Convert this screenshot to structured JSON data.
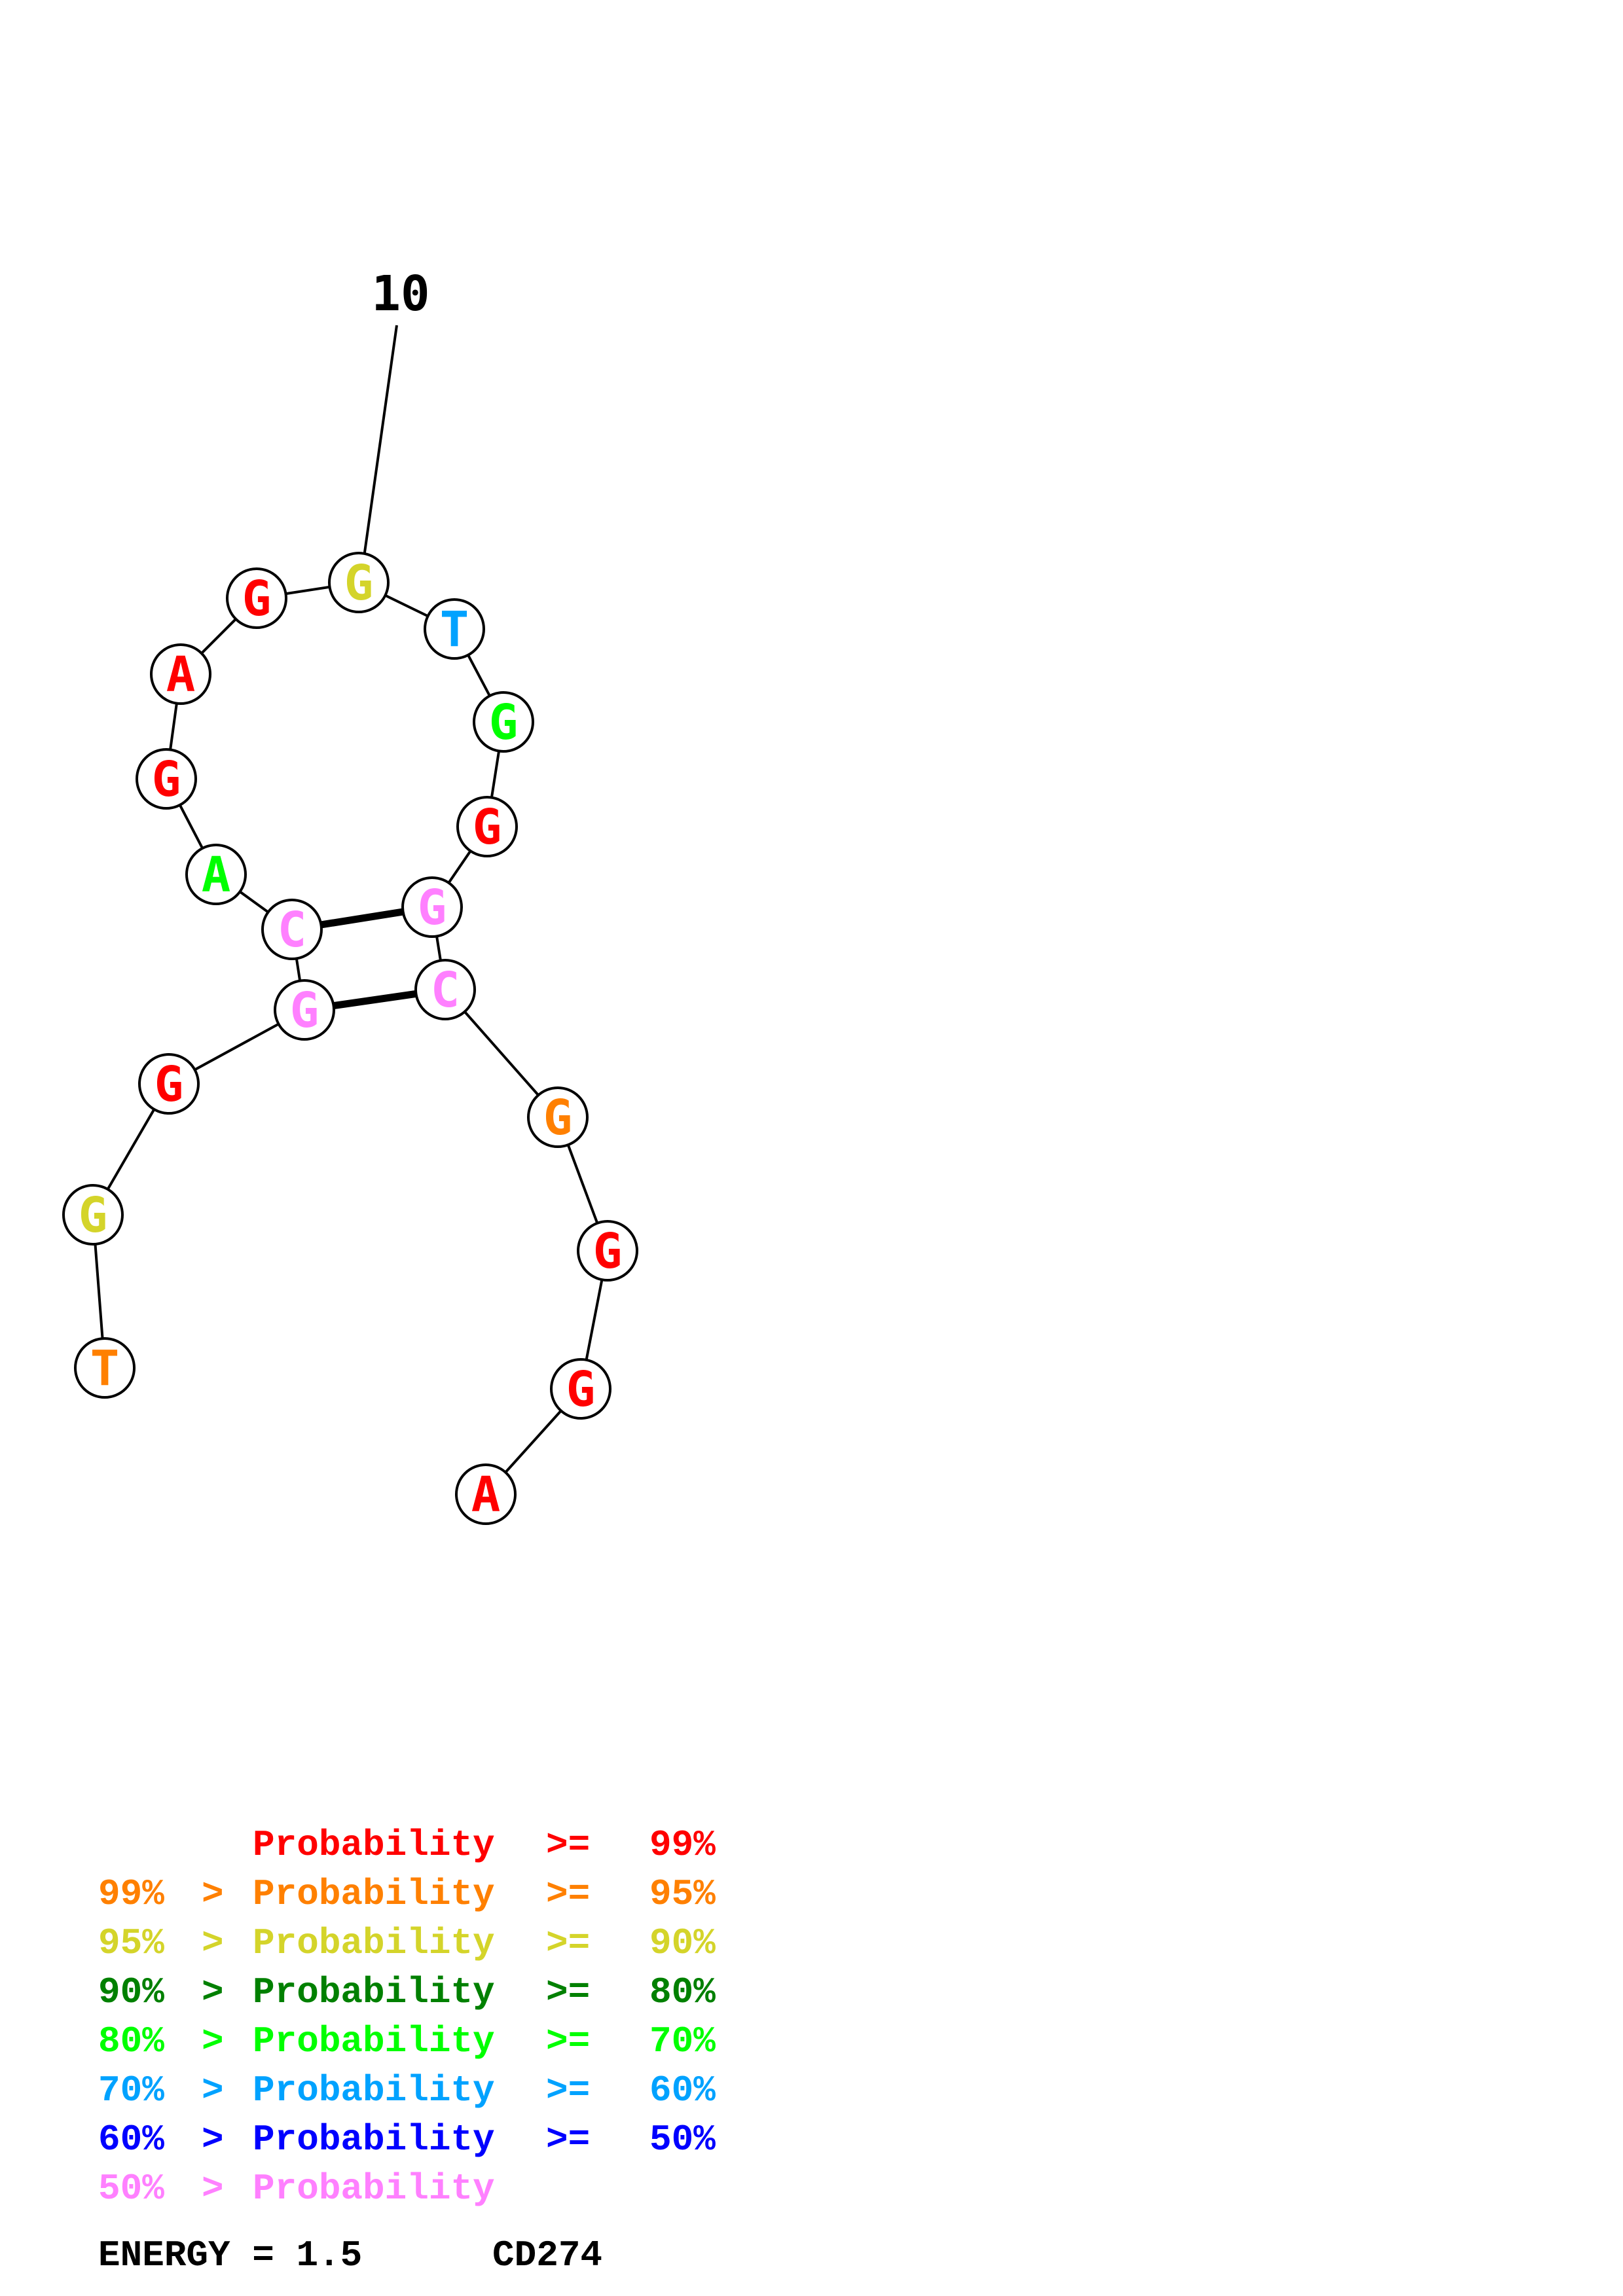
{
  "colors": {
    "p99": "#ff0000",
    "p95": "#ff8000",
    "p90": "#d4d42a",
    "p80": "#008000",
    "p70": "#00ff00",
    "p60": "#00a2ff",
    "p50": "#0000ff",
    "plow": "#ff80ff",
    "ink": "#000000"
  },
  "position_marker": "10",
  "nucleotides": [
    {
      "base": "T",
      "prob": "p95"
    },
    {
      "base": "G",
      "prob": "p90"
    },
    {
      "base": "G",
      "prob": "p99"
    },
    {
      "base": "G",
      "prob": "plow"
    },
    {
      "base": "C",
      "prob": "plow"
    },
    {
      "base": "A",
      "prob": "p70"
    },
    {
      "base": "G",
      "prob": "p99"
    },
    {
      "base": "A",
      "prob": "p99"
    },
    {
      "base": "G",
      "prob": "p99"
    },
    {
      "base": "G",
      "prob": "p90"
    },
    {
      "base": "T",
      "prob": "p60"
    },
    {
      "base": "G",
      "prob": "p70"
    },
    {
      "base": "G",
      "prob": "p99"
    },
    {
      "base": "G",
      "prob": "plow"
    },
    {
      "base": "C",
      "prob": "plow"
    },
    {
      "base": "G",
      "prob": "p95"
    },
    {
      "base": "G",
      "prob": "p99"
    },
    {
      "base": "G",
      "prob": "p99"
    },
    {
      "base": "A",
      "prob": "p99"
    }
  ],
  "base_pairs": [
    [
      4,
      15
    ],
    [
      5,
      14
    ]
  ],
  "legend": [
    {
      "left": "",
      "gt": "",
      "mid": "Probability",
      "ge": ">=",
      "right": "99%",
      "color": "p99"
    },
    {
      "left": "99%",
      "gt": ">",
      "mid": "Probability",
      "ge": ">=",
      "right": "95%",
      "color": "p95"
    },
    {
      "left": "95%",
      "gt": ">",
      "mid": "Probability",
      "ge": ">=",
      "right": "90%",
      "color": "p90"
    },
    {
      "left": "90%",
      "gt": ">",
      "mid": "Probability",
      "ge": ">=",
      "right": "80%",
      "color": "p80"
    },
    {
      "left": "80%",
      "gt": ">",
      "mid": "Probability",
      "ge": ">=",
      "right": "70%",
      "color": "p70"
    },
    {
      "left": "70%",
      "gt": ">",
      "mid": "Probability",
      "ge": ">=",
      "right": "60%",
      "color": "p60"
    },
    {
      "left": "60%",
      "gt": ">",
      "mid": "Probability",
      "ge": ">=",
      "right": "50%",
      "color": "p50"
    },
    {
      "left": "50%",
      "gt": ">",
      "mid": "Probability",
      "ge": "",
      "right": "",
      "color": "plow"
    }
  ],
  "energy_label": "ENERGY = 1.5",
  "gene_name": "CD274"
}
